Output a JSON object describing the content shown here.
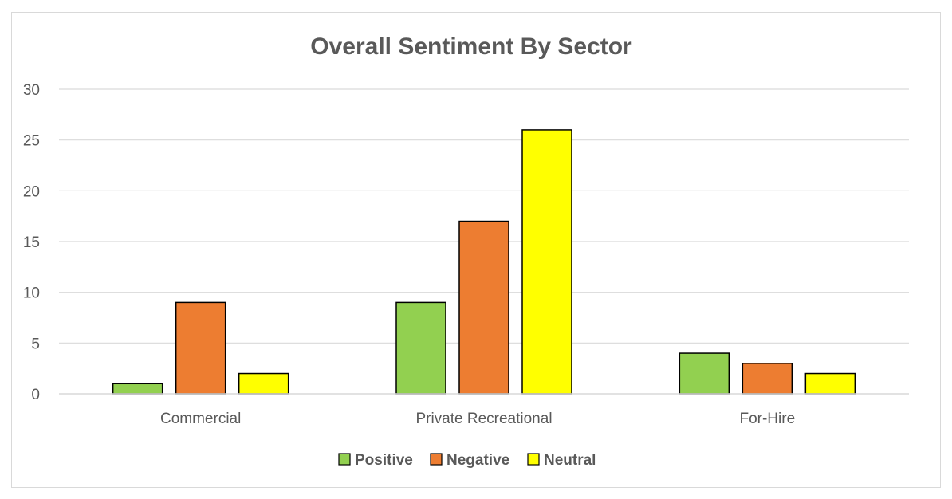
{
  "chart_data": {
    "type": "bar",
    "title": "Overall Sentiment By Sector",
    "categories": [
      "Commercial",
      "Private Recreational",
      "For-Hire"
    ],
    "series": [
      {
        "name": "Positive",
        "values": [
          1,
          9,
          4
        ],
        "color": "#92d050"
      },
      {
        "name": "Negative",
        "values": [
          9,
          17,
          3
        ],
        "color": "#ed7d31"
      },
      {
        "name": "Neutral",
        "values": [
          2,
          26,
          2
        ],
        "color": "#ffff00"
      }
    ],
    "ylim": [
      0,
      30
    ],
    "yticks": [
      0,
      5,
      10,
      15,
      20,
      25,
      30
    ],
    "grid": true,
    "legend_position": "bottom"
  }
}
